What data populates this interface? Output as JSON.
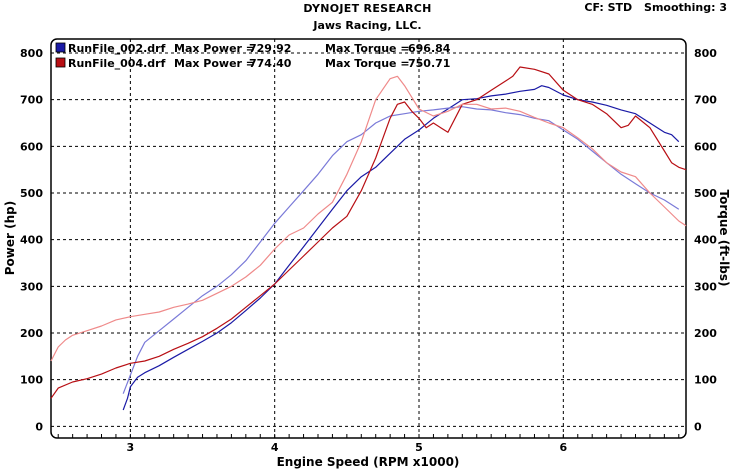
{
  "header": {
    "title": "DYNOJET RESEARCH",
    "subtitle": "Jaws Racing, LLC.",
    "cf": "CF: STD",
    "smoothing": "Smoothing: 3"
  },
  "colors": {
    "run1": "#1a1aa6",
    "run1_light": "#7a7ad8",
    "run2": "#b80f14",
    "run2_light": "#ef8a8a",
    "grid": "#000000"
  },
  "chart_data": {
    "type": "line",
    "xlabel": "Engine Speed (RPM x1000)",
    "ylabel_left": "Power (hp)",
    "ylabel_right": "Torque (ft-lbs)",
    "xlim": [
      2.45,
      6.85
    ],
    "ylim": [
      -25,
      830
    ],
    "x_ticks": [
      3,
      4,
      5,
      6
    ],
    "y_ticks": [
      0,
      100,
      200,
      300,
      400,
      500,
      600,
      700,
      800
    ],
    "grid": true,
    "legend_position": "top-left",
    "legend": [
      {
        "file": "RunFile_002.drf",
        "max_power_label": "Max Power =",
        "max_power": "729.92",
        "max_torque_label": "Max Torque =",
        "max_torque": "696.84",
        "color": "#1a1aa6"
      },
      {
        "file": "RunFile_004.drf",
        "max_power_label": "Max Power =",
        "max_power": "774.40",
        "max_torque_label": "Max Torque =",
        "max_torque": "750.71",
        "color": "#b80f14"
      }
    ],
    "series": [
      {
        "name": "RunFile_002.drf",
        "measure": "power",
        "color": "#1a1aa6",
        "x": [
          2.95,
          2.98,
          3.0,
          3.05,
          3.1,
          3.2,
          3.3,
          3.4,
          3.5,
          3.6,
          3.7,
          3.8,
          3.9,
          4.0,
          4.1,
          4.2,
          4.3,
          4.4,
          4.5,
          4.6,
          4.7,
          4.8,
          4.9,
          5.0,
          5.1,
          5.2,
          5.3,
          5.4,
          5.5,
          5.6,
          5.7,
          5.8,
          5.85,
          5.9,
          6.0,
          6.1,
          6.2,
          6.3,
          6.4,
          6.5,
          6.6,
          6.7,
          6.75,
          6.8
        ],
        "y": [
          35,
          60,
          85,
          105,
          115,
          130,
          148,
          165,
          182,
          200,
          222,
          248,
          275,
          305,
          345,
          385,
          425,
          465,
          505,
          535,
          555,
          585,
          615,
          635,
          660,
          680,
          700,
          702,
          708,
          712,
          718,
          722,
          730,
          726,
          710,
          700,
          695,
          688,
          678,
          670,
          650,
          630,
          625,
          610
        ]
      },
      {
        "name": "RunFile_002.drf",
        "measure": "torque",
        "color": "#7a7ad8",
        "x": [
          2.95,
          3.0,
          3.05,
          3.1,
          3.2,
          3.3,
          3.4,
          3.5,
          3.6,
          3.7,
          3.8,
          3.9,
          4.0,
          4.1,
          4.2,
          4.3,
          4.4,
          4.5,
          4.6,
          4.7,
          4.8,
          4.9,
          5.0,
          5.1,
          5.2,
          5.3,
          5.4,
          5.5,
          5.6,
          5.7,
          5.8,
          5.9,
          6.0,
          6.1,
          6.2,
          6.3,
          6.4,
          6.5,
          6.6,
          6.7,
          6.8
        ],
        "y": [
          70,
          110,
          150,
          180,
          205,
          230,
          255,
          280,
          300,
          325,
          355,
          395,
          435,
          470,
          505,
          540,
          580,
          610,
          625,
          650,
          665,
          670,
          675,
          678,
          682,
          685,
          680,
          678,
          672,
          668,
          660,
          655,
          635,
          615,
          590,
          565,
          540,
          520,
          500,
          485,
          465
        ]
      },
      {
        "name": "RunFile_004.drf",
        "measure": "power",
        "color": "#b80f14",
        "x": [
          2.45,
          2.5,
          2.6,
          2.7,
          2.8,
          2.9,
          3.0,
          3.1,
          3.2,
          3.3,
          3.4,
          3.5,
          3.6,
          3.7,
          3.8,
          3.9,
          4.0,
          4.1,
          4.2,
          4.3,
          4.4,
          4.5,
          4.6,
          4.7,
          4.8,
          4.85,
          4.9,
          4.95,
          5.0,
          5.05,
          5.1,
          5.15,
          5.2,
          5.3,
          5.4,
          5.5,
          5.6,
          5.65,
          5.7,
          5.8,
          5.9,
          6.0,
          6.1,
          6.2,
          6.3,
          6.4,
          6.45,
          6.5,
          6.6,
          6.7,
          6.75,
          6.8,
          6.85
        ],
        "y": [
          60,
          82,
          95,
          102,
          112,
          125,
          135,
          140,
          150,
          165,
          178,
          192,
          210,
          230,
          255,
          280,
          305,
          335,
          365,
          395,
          425,
          450,
          505,
          575,
          660,
          690,
          695,
          675,
          660,
          640,
          650,
          640,
          630,
          690,
          700,
          720,
          740,
          750,
          770,
          765,
          755,
          720,
          700,
          690,
          670,
          640,
          645,
          665,
          640,
          590,
          565,
          555,
          550
        ]
      },
      {
        "name": "RunFile_004.drf",
        "measure": "torque",
        "color": "#ef8a8a",
        "x": [
          2.45,
          2.5,
          2.55,
          2.6,
          2.7,
          2.8,
          2.9,
          3.0,
          3.1,
          3.2,
          3.3,
          3.4,
          3.5,
          3.6,
          3.7,
          3.8,
          3.9,
          4.0,
          4.1,
          4.2,
          4.3,
          4.4,
          4.5,
          4.6,
          4.7,
          4.8,
          4.85,
          4.9,
          4.95,
          5.0,
          5.1,
          5.2,
          5.3,
          5.4,
          5.5,
          5.6,
          5.7,
          5.8,
          5.9,
          6.0,
          6.1,
          6.2,
          6.3,
          6.4,
          6.5,
          6.6,
          6.7,
          6.8,
          6.85
        ],
        "y": [
          140,
          170,
          185,
          195,
          205,
          215,
          228,
          235,
          240,
          245,
          255,
          262,
          270,
          285,
          300,
          320,
          345,
          380,
          410,
          425,
          455,
          480,
          540,
          610,
          700,
          745,
          750,
          730,
          705,
          680,
          665,
          675,
          690,
          690,
          680,
          682,
          675,
          662,
          650,
          640,
          618,
          595,
          565,
          545,
          535,
          500,
          470,
          440,
          430
        ]
      }
    ]
  }
}
